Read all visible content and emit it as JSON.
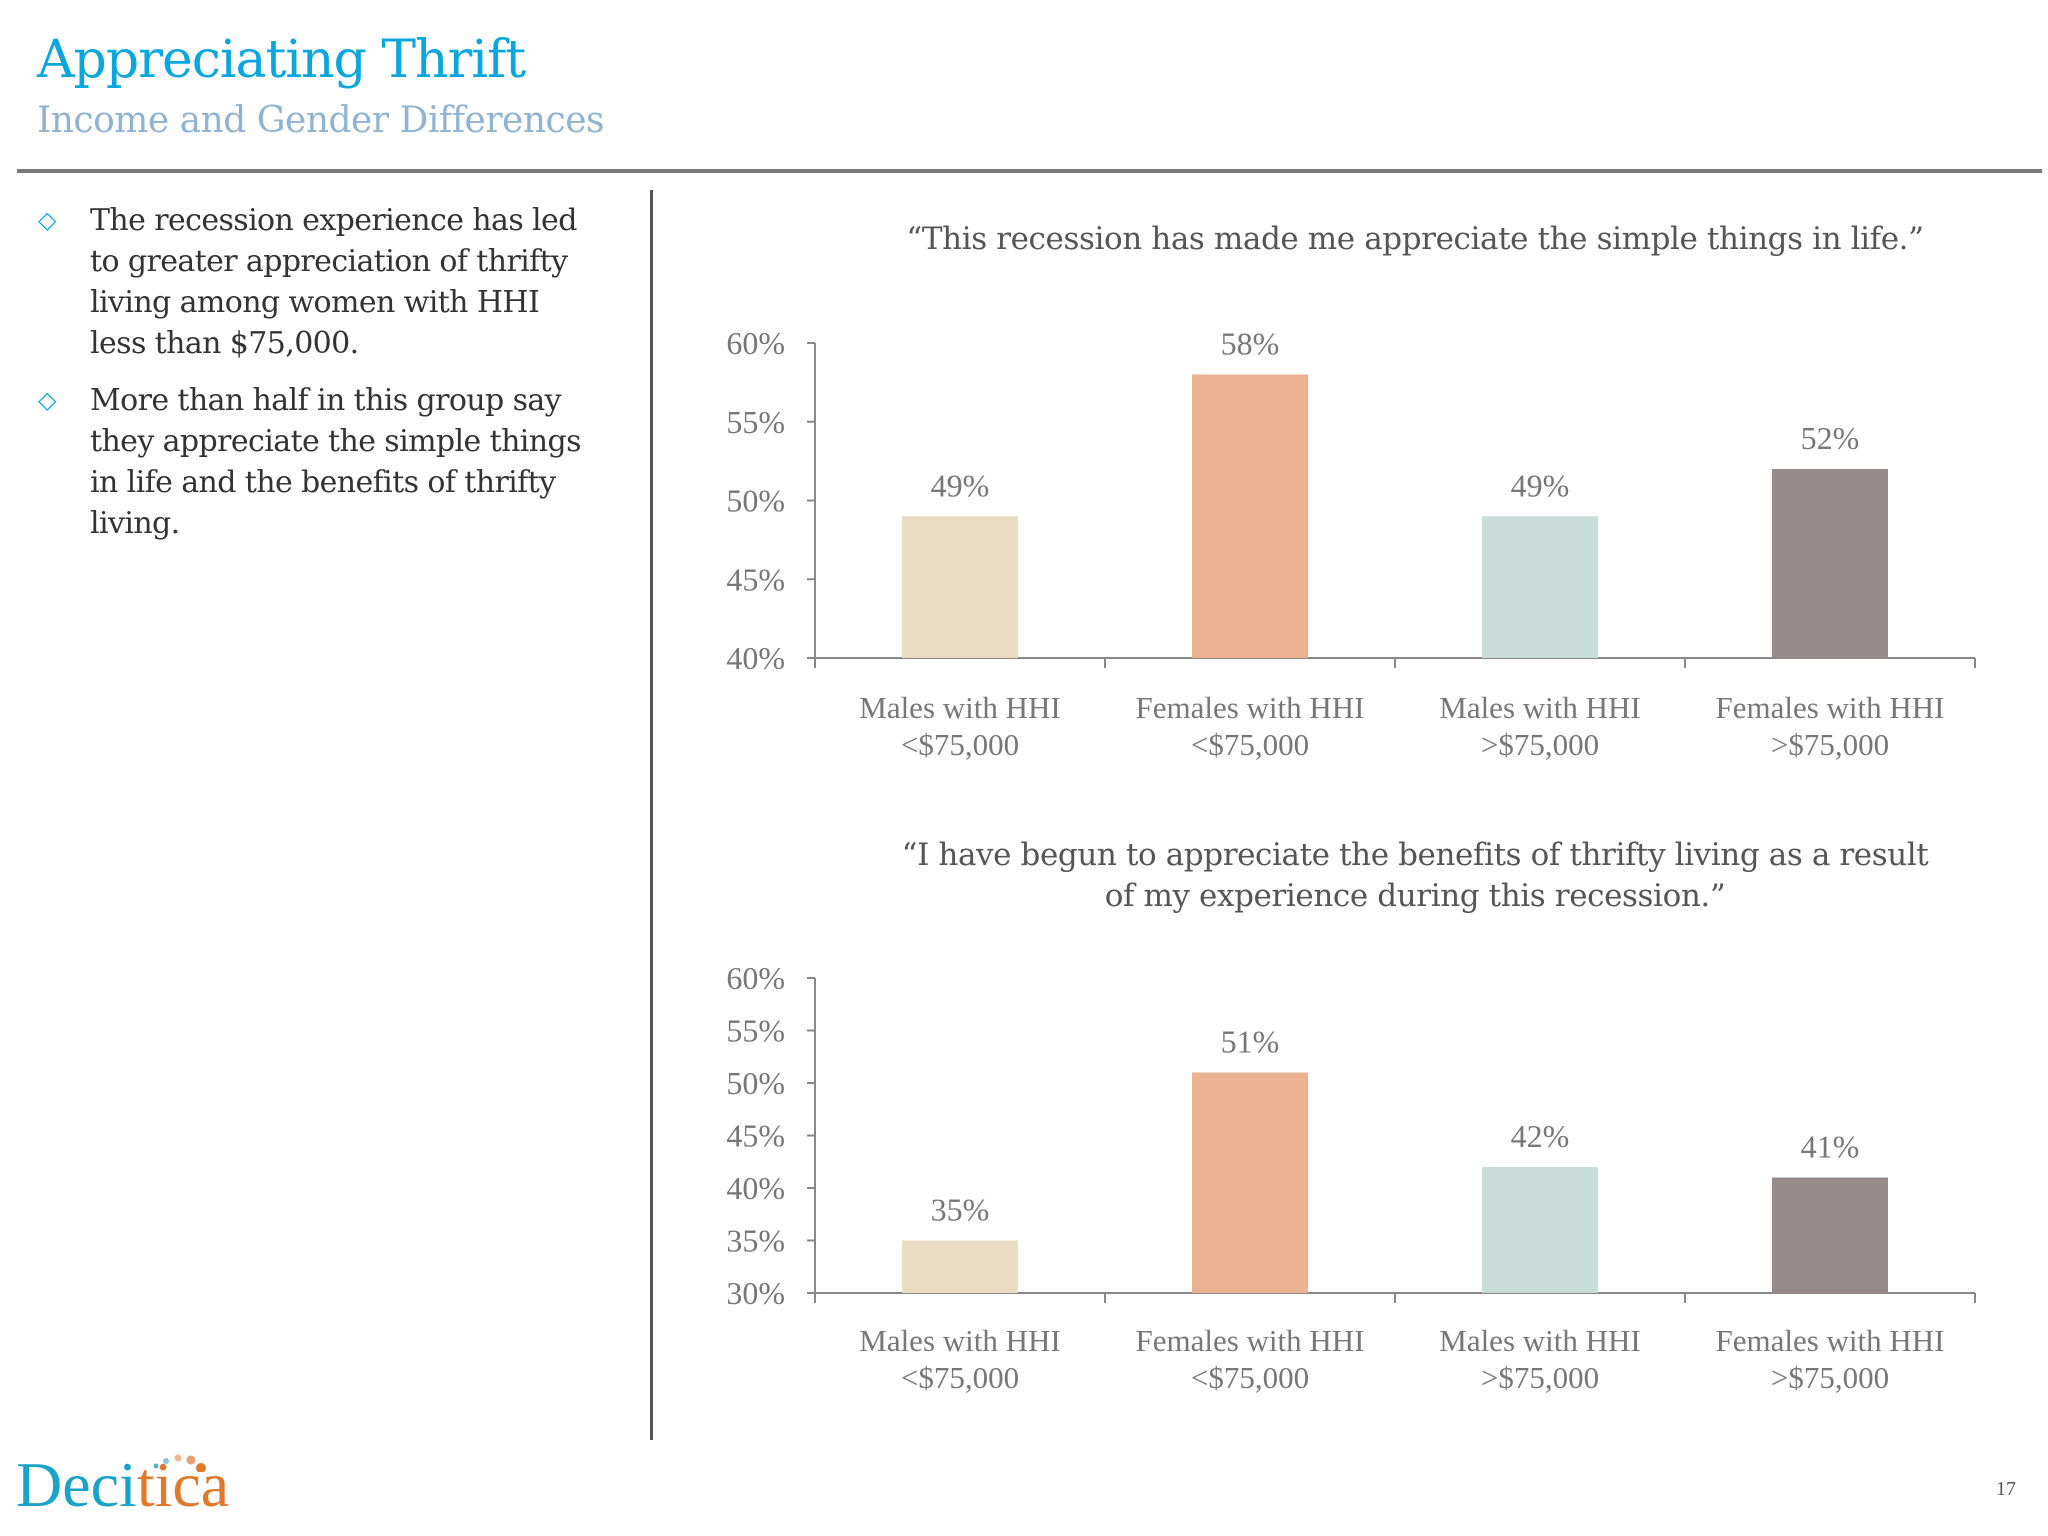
{
  "header": {
    "title": "Appreciating Thrift",
    "subtitle": "Income and Gender Differences"
  },
  "bullets": [
    "The recession experience has led to greater appreciation of thrifty living among women with HHI less than $75,000.",
    "More than half in this group say they appreciate the simple things in life and the benefits of thrifty living."
  ],
  "footer": {
    "logo": "Decitica",
    "page_number": "17"
  },
  "chart_data": [
    {
      "type": "bar",
      "title": "“This recession has made me appreciate the simple things in life.”",
      "categories": [
        [
          "Males with HHI",
          "<$75,000"
        ],
        [
          "Females with HHI",
          "<$75,000"
        ],
        [
          "Males with HHI",
          ">$75,000"
        ],
        [
          "Females with HHI",
          ">$75,000"
        ]
      ],
      "values": [
        49,
        58,
        49,
        52
      ],
      "data_labels": [
        "49%",
        "58%",
        "49%",
        "52%"
      ],
      "ylim": [
        40,
        60
      ],
      "yticks": [
        "40%",
        "45%",
        "50%",
        "55%",
        "60%"
      ],
      "colors": [
        "#e8dcc2",
        "#eab291",
        "#c8ddd8",
        "#958b8b"
      ],
      "grid": false,
      "legend": "none"
    },
    {
      "type": "bar",
      "title": "“I have begun to appreciate the benefits of thrifty living as a result of my experience during this recession.”",
      "categories": [
        [
          "Males with HHI",
          "<$75,000"
        ],
        [
          "Females with HHI",
          "<$75,000"
        ],
        [
          "Males with HHI",
          ">$75,000"
        ],
        [
          "Females with HHI",
          ">$75,000"
        ]
      ],
      "values": [
        35,
        51,
        42,
        41
      ],
      "data_labels": [
        "35%",
        "51%",
        "42%",
        "41%"
      ],
      "ylim": [
        30,
        60
      ],
      "yticks": [
        "30%",
        "35%",
        "40%",
        "45%",
        "50%",
        "55%",
        "60%"
      ],
      "colors": [
        "#e8dcc2",
        "#eab291",
        "#c8ddd8",
        "#958b8b"
      ],
      "grid": false,
      "legend": "none"
    }
  ]
}
